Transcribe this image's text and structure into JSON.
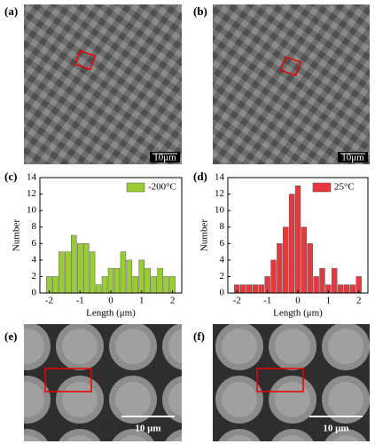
{
  "panels": [
    {
      "label": "(a)",
      "scale": "10μm"
    },
    {
      "label": "(b)",
      "scale": "10μm"
    },
    {
      "label": "(c)"
    },
    {
      "label": "(d)"
    },
    {
      "label": "(e)",
      "scale": "10 μm"
    },
    {
      "label": "(f)",
      "scale": "10 μm"
    }
  ],
  "chart_data": [
    {
      "type": "histogram",
      "xlabel": "Length (μm)",
      "ylabel": "Number",
      "bins": [
        -2.1,
        -1.9,
        -1.7,
        -1.5,
        -1.3,
        -1.1,
        -0.9,
        -0.7,
        -0.5,
        -0.3,
        -0.1,
        0.1,
        0.3,
        0.5,
        0.7,
        0.9,
        1.1,
        1.3,
        1.5,
        1.7,
        1.9,
        2.1
      ],
      "series": [
        {
          "name": "-200°C",
          "color": "#9acd32",
          "values": [
            2,
            2,
            5,
            5,
            7,
            6,
            6,
            5,
            1,
            2,
            3,
            3,
            5,
            4,
            2,
            4,
            3,
            2,
            3,
            2,
            2
          ]
        }
      ],
      "xlim": [
        -2.3,
        2.3
      ],
      "xticks": [
        -2,
        -1,
        0,
        1,
        2
      ],
      "ylim": [
        0,
        14
      ],
      "yticks": [
        0,
        2,
        4,
        6,
        8,
        10,
        12,
        14
      ],
      "legend": "upper right"
    },
    {
      "type": "histogram",
      "xlabel": "Length (μm)",
      "ylabel": "Number",
      "bins": [
        -2.1,
        -1.9,
        -1.7,
        -1.5,
        -1.3,
        -1.1,
        -0.9,
        -0.7,
        -0.5,
        -0.3,
        -0.1,
        0.1,
        0.3,
        0.5,
        0.7,
        0.9,
        1.1,
        1.3,
        1.5,
        1.7,
        1.9,
        2.1
      ],
      "series": [
        {
          "name": "25°C",
          "color": "#e8383d",
          "values": [
            1,
            1,
            1,
            1,
            1,
            2,
            4,
            6,
            8,
            12,
            13,
            8,
            6,
            2,
            3,
            1,
            3,
            1,
            1,
            1,
            2
          ]
        }
      ],
      "xlim": [
        -2.3,
        2.3
      ],
      "xticks": [
        -2,
        -1,
        0,
        1,
        2
      ],
      "ylim": [
        0,
        14
      ],
      "yticks": [
        0,
        2,
        4,
        6,
        8,
        10,
        12,
        14
      ],
      "legend": "upper right"
    }
  ]
}
